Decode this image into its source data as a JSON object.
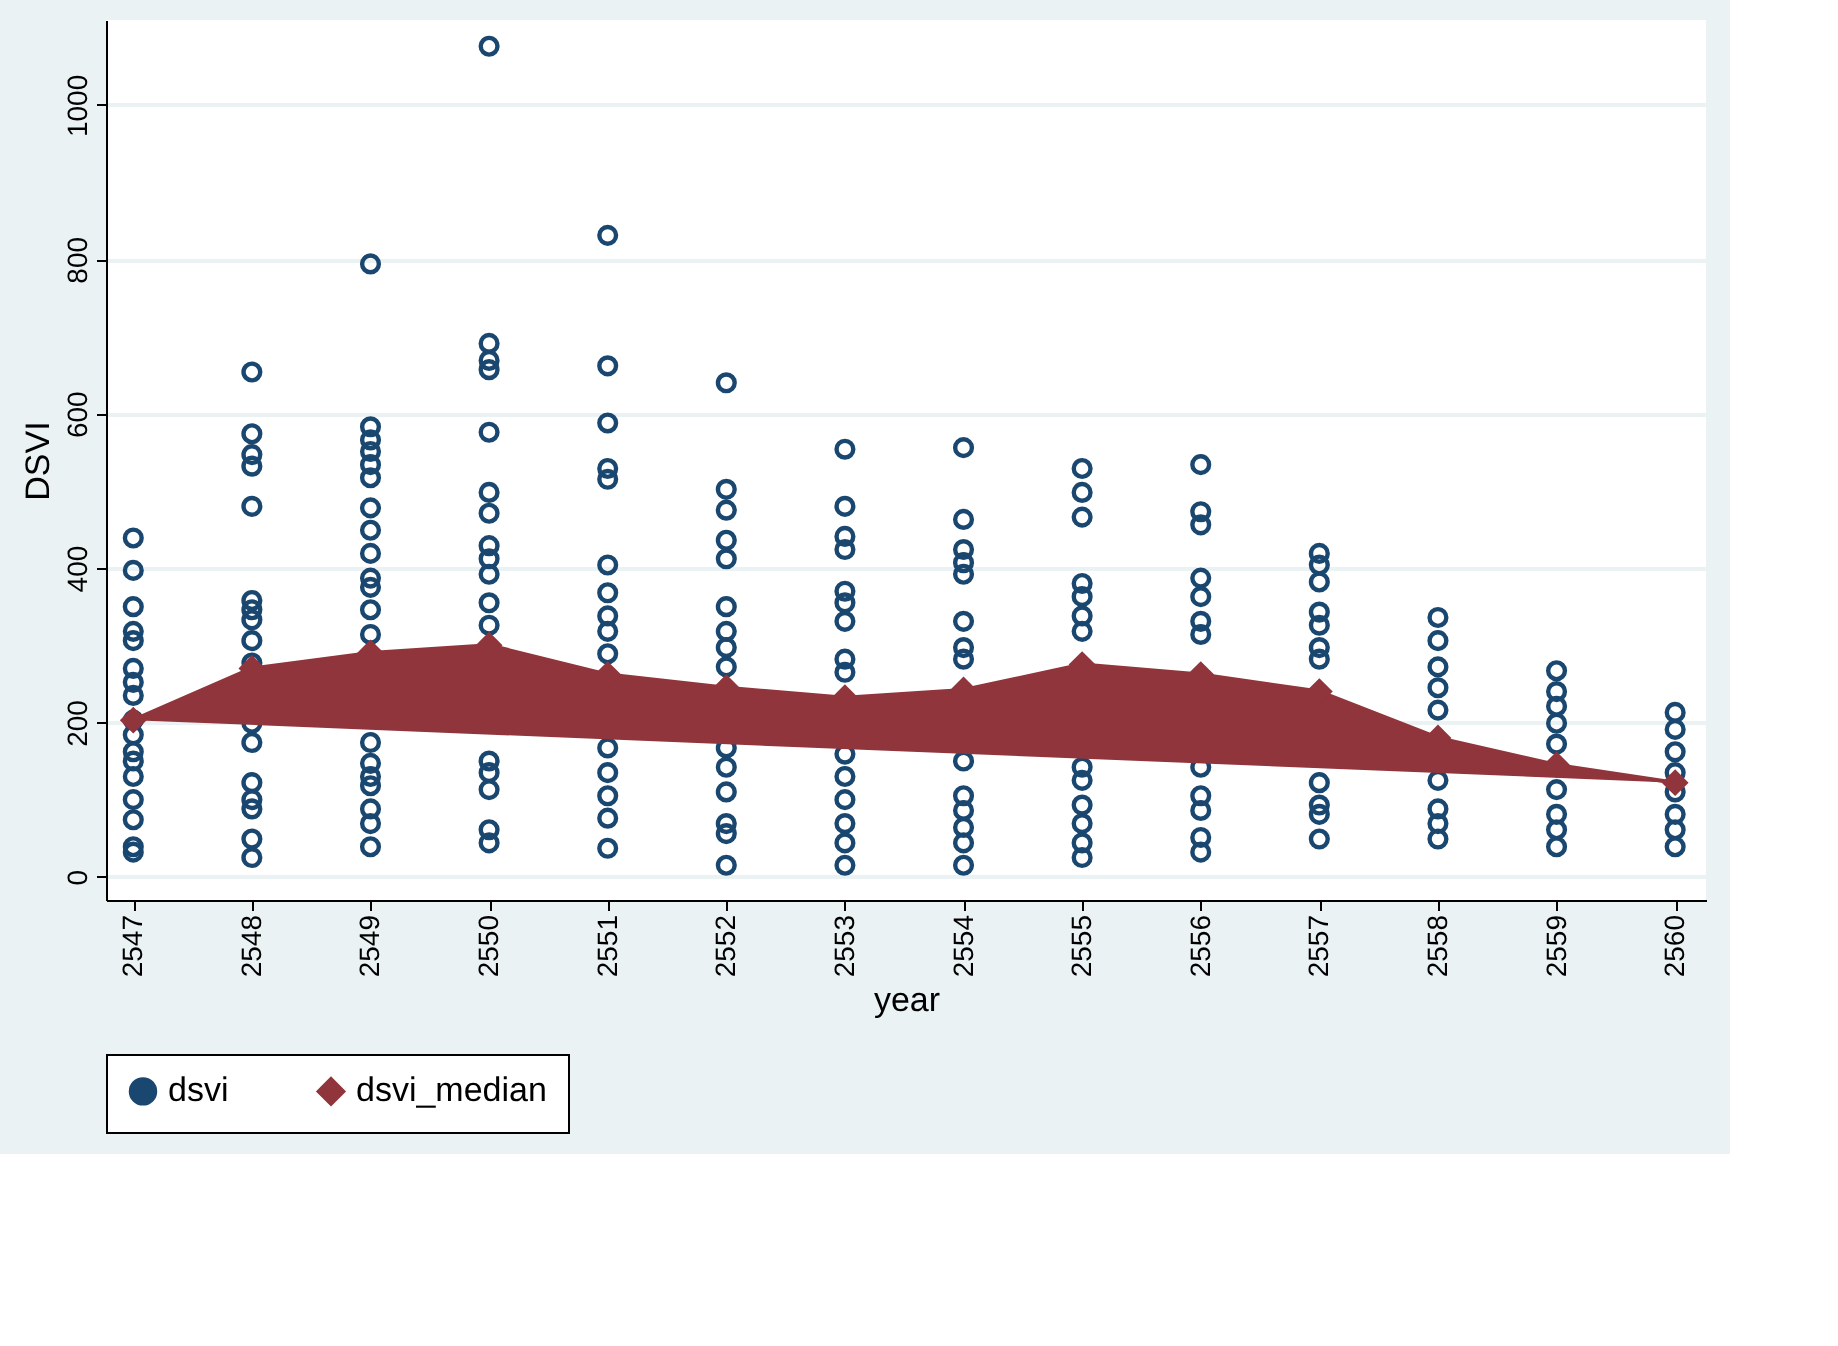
{
  "chart_data": {
    "type": "scatter",
    "xlabel": "year",
    "ylabel": "DSVI",
    "xlim": [
      2546.77,
      2560.26
    ],
    "xticks": [
      2547,
      2548,
      2549,
      2550,
      2551,
      2552,
      2553,
      2554,
      2555,
      2556,
      2557,
      2558,
      2559,
      2560
    ],
    "ylim": [
      -30,
      1110
    ],
    "yticks": [
      0,
      200,
      400,
      600,
      800,
      1000
    ],
    "grid": "y",
    "legend": "bottom",
    "series": [
      {
        "name": "dsvi",
        "marker": "circle",
        "color": "#1a476f",
        "x": [
          2547,
          2547,
          2547,
          2547,
          2547,
          2547,
          2547,
          2547,
          2547,
          2547,
          2547,
          2547,
          2547,
          2547,
          2547,
          2547,
          2547,
          2548,
          2548,
          2548,
          2548,
          2548,
          2548,
          2548,
          2548,
          2548,
          2548,
          2548,
          2548,
          2548,
          2548,
          2548,
          2548,
          2548,
          2549,
          2549,
          2549,
          2549,
          2549,
          2549,
          2549,
          2549,
          2549,
          2549,
          2549,
          2549,
          2549,
          2549,
          2549,
          2549,
          2549,
          2549,
          2549,
          2549,
          2550,
          2550,
          2550,
          2550,
          2550,
          2550,
          2550,
          2550,
          2550,
          2550,
          2550,
          2550,
          2550,
          2550,
          2550,
          2550,
          2550,
          2551,
          2551,
          2551,
          2551,
          2551,
          2551,
          2551,
          2551,
          2551,
          2551,
          2551,
          2551,
          2551,
          2551,
          2551,
          2552,
          2552,
          2552,
          2552,
          2552,
          2552,
          2552,
          2552,
          2552,
          2552,
          2552,
          2552,
          2552,
          2552,
          2552,
          2553,
          2553,
          2553,
          2553,
          2553,
          2553,
          2553,
          2553,
          2553,
          2553,
          2553,
          2553,
          2553,
          2553,
          2553,
          2554,
          2554,
          2554,
          2554,
          2554,
          2554,
          2554,
          2554,
          2554,
          2554,
          2554,
          2554,
          2554,
          2554,
          2555,
          2555,
          2555,
          2555,
          2555,
          2555,
          2555,
          2555,
          2555,
          2555,
          2555,
          2555,
          2555,
          2556,
          2556,
          2556,
          2556,
          2556,
          2556,
          2556,
          2556,
          2556,
          2556,
          2556,
          2556,
          2557,
          2557,
          2557,
          2557,
          2557,
          2557,
          2557,
          2557,
          2557,
          2557,
          2557,
          2558,
          2558,
          2558,
          2558,
          2558,
          2558,
          2558,
          2558,
          2558,
          2559,
          2559,
          2559,
          2559,
          2559,
          2559,
          2559,
          2559,
          2559,
          2560,
          2560,
          2560,
          2560,
          2560,
          2560,
          2560,
          2560
        ],
        "values": [
          439,
          397,
          350,
          318,
          306,
          270,
          252,
          235,
          203,
          184,
          162,
          150,
          130,
          100,
          74,
          39,
          32,
          654,
          574,
          547,
          532,
          480,
          358,
          346,
          333,
          306,
          277,
          199,
          174,
          122,
          100,
          88,
          49,
          25,
          794,
          583,
          566,
          551,
          534,
          517,
          478,
          449,
          419,
          387,
          375,
          346,
          314,
          174,
          147,
          130,
          118,
          88,
          69,
          39,
          1076,
          691,
          669,
          657,
          576,
          498,
          471,
          429,
          412,
          392,
          355,
          326,
          150,
          135,
          113,
          61,
          44,
          831,
          662,
          588,
          529,
          515,
          404,
          368,
          338,
          318,
          289,
          167,
          135,
          105,
          76,
          37,
          640,
          502,
          475,
          436,
          412,
          350,
          318,
          297,
          272,
          167,
          142,
          110,
          69,
          56,
          15,
          554,
          480,
          441,
          424,
          370,
          355,
          331,
          282,
          265,
          159,
          130,
          100,
          69,
          44,
          15,
          556,
          463,
          424,
          407,
          392,
          331,
          297,
          282,
          150,
          105,
          86,
          64,
          44,
          15,
          529,
          498,
          466,
          380,
          363,
          338,
          318,
          142,
          125,
          93,
          69,
          44,
          25,
          534,
          473,
          456,
          387,
          363,
          331,
          314,
          142,
          105,
          86,
          51,
          32,
          419,
          404,
          382,
          343,
          326,
          297,
          282,
          122,
          93,
          81,
          49,
          336,
          306,
          272,
          245,
          216,
          125,
          88,
          69,
          49,
          267,
          240,
          221,
          199,
          172,
          113,
          81,
          61,
          39,
          213,
          191,
          162,
          135,
          110,
          81,
          61,
          39
        ]
      },
      {
        "name": "dsvi_median",
        "type": "line",
        "marker": "diamond",
        "color": "#90353b",
        "x": [
          2547,
          2548,
          2549,
          2550,
          2551,
          2552,
          2553,
          2554,
          2555,
          2556,
          2557,
          2558,
          2559,
          2560
        ],
        "values": [
          203,
          270,
          290,
          300,
          262,
          245,
          232,
          242,
          275,
          262,
          240,
          180,
          145,
          122
        ]
      }
    ]
  }
}
